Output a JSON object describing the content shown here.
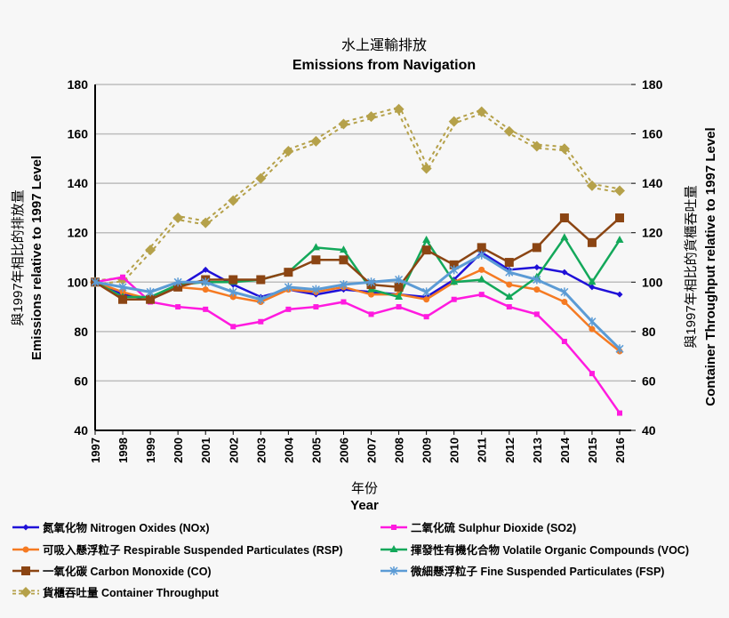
{
  "chart_data": {
    "type": "line",
    "title": "水上運輸排放",
    "subtitle": "Emissions from Navigation",
    "xlabel_zh": "年份",
    "xlabel": "Year",
    "ylabel_left_zh": "與1997年相比的排放量",
    "ylabel_left": "Emissions  relative to 1997 Level",
    "ylabel_right_zh": "與1997年相比的貨櫃吞吐量",
    "ylabel_right": "Container Throughput  relative to 1997 Level",
    "ylim": [
      40,
      180
    ],
    "yticks": [
      40,
      60,
      80,
      100,
      120,
      140,
      160,
      180
    ],
    "grid": true,
    "legend_placement": "bottom",
    "x": [
      "1997",
      "1998",
      "1999",
      "2000",
      "2001",
      "2002",
      "2003",
      "2004",
      "2005",
      "2006",
      "2007",
      "2008",
      "2009",
      "2010",
      "2011",
      "2012",
      "2013",
      "2014",
      "2015",
      "2016"
    ],
    "series": [
      {
        "name": "氮氧化物 Nitrogen Oxides (NOx)",
        "color": "#1f10d8",
        "marker": "diamond",
        "values": [
          100,
          95,
          93,
          98,
          105,
          99,
          94,
          97,
          95,
          97,
          96,
          95,
          94,
          101,
          112,
          105,
          106,
          104,
          98,
          95
        ]
      },
      {
        "name": "二氧化硫 Sulphur Dioxide (SO2)",
        "color": "#ff1adf",
        "marker": "square",
        "values": [
          100,
          102,
          92,
          90,
          89,
          82,
          84,
          89,
          90,
          92,
          87,
          90,
          86,
          93,
          95,
          90,
          87,
          76,
          63,
          47
        ]
      },
      {
        "name": "可吸入懸浮粒子 Respirable Suspended Particulates (RSP)",
        "color": "#f57a22",
        "marker": "circle",
        "values": [
          100,
          96,
          93,
          98,
          97,
          94,
          92,
          97,
          96,
          98,
          95,
          95,
          93,
          100,
          105,
          99,
          97,
          92,
          81,
          72
        ]
      },
      {
        "name": "揮發性有機化合物 Volatile Organic Compounds (VOC)",
        "color": "#13a85a",
        "marker": "triangle",
        "values": [
          100,
          94,
          94,
          99,
          100,
          100,
          101,
          104,
          114,
          113,
          97,
          94,
          117,
          100,
          101,
          94,
          102,
          118,
          100,
          117
        ]
      },
      {
        "name": "一氧化碳 Carbon Monoxide (CO)",
        "color": "#8b4513",
        "marker": "bigsquare",
        "values": [
          100,
          93,
          93,
          98,
          101,
          101,
          101,
          104,
          109,
          109,
          99,
          98,
          113,
          107,
          114,
          108,
          114,
          126,
          116,
          126
        ]
      },
      {
        "name": "微細懸浮粒子 Fine Suspended Particulates (FSP)",
        "color": "#5b9bd5",
        "marker": "star",
        "values": [
          100,
          98,
          96,
          100,
          100,
          96,
          93,
          98,
          97,
          99,
          100,
          101,
          96,
          105,
          111,
          104,
          101,
          96,
          84,
          73
        ]
      },
      {
        "name": "貨櫃吞吐量 Container Throughput",
        "color": "#b5a14a",
        "marker": "diamond",
        "dashed": true,
        "values": [
          100,
          101,
          113,
          126,
          124,
          133,
          142,
          153,
          157,
          164,
          167,
          170,
          146,
          165,
          169,
          161,
          155,
          154,
          139,
          137
        ]
      }
    ]
  }
}
